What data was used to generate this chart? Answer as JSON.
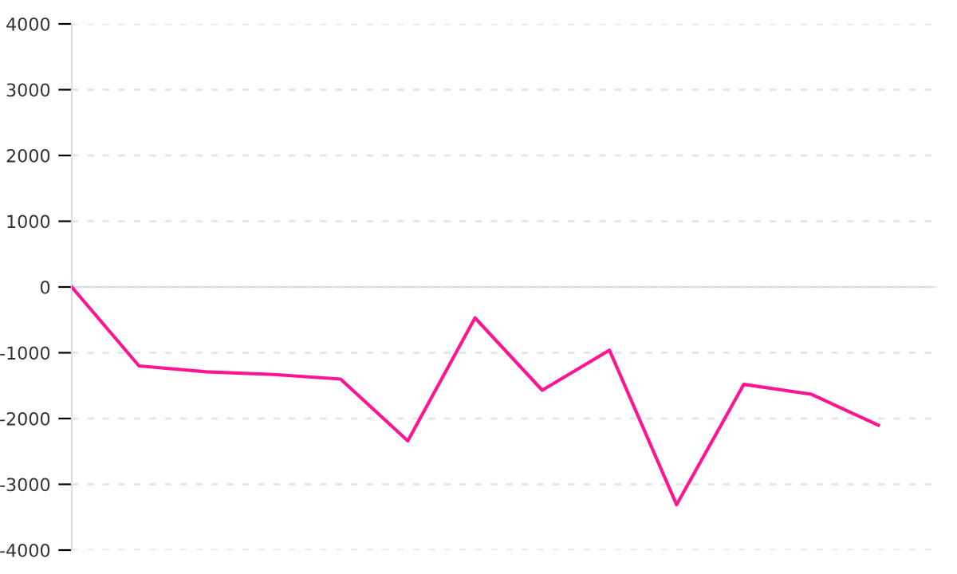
{
  "chart_data": {
    "type": "line",
    "categories": [
      null,
      null,
      null,
      null,
      null,
      null,
      null,
      null,
      null,
      null,
      null,
      null,
      null
    ],
    "series": [
      {
        "color": "#ff1493",
        "values": [
          0,
          -1200,
          -1290,
          -1330,
          -1400,
          -2340,
          -470,
          -1570,
          -960,
          -3310,
          -1480,
          -1630,
          -2100
        ]
      }
    ],
    "ylim": [
      -4000,
      4000
    ],
    "yticks": [
      -4000,
      -3000,
      -2000,
      -1000,
      0,
      1000,
      2000,
      3000,
      4000
    ],
    "grid": "y",
    "marker": "none",
    "line_style": "solid"
  }
}
